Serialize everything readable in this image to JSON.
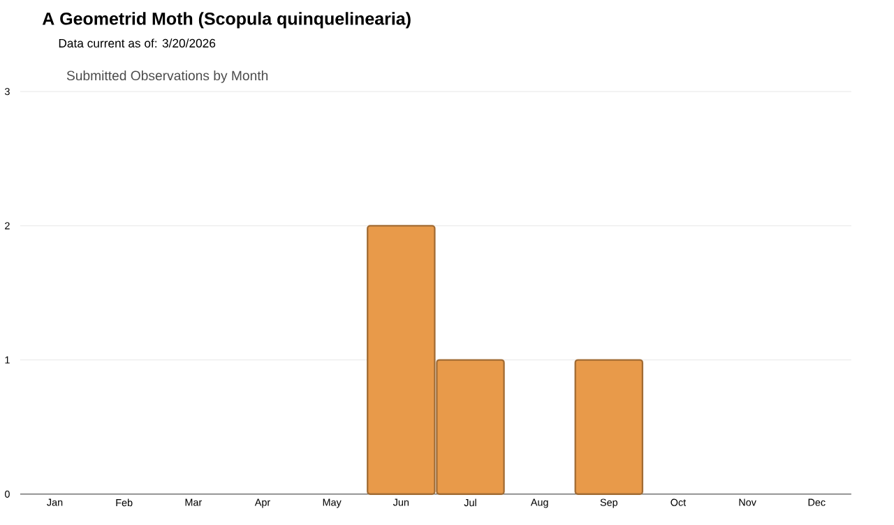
{
  "chart_data": {
    "type": "bar",
    "title": "A Geometrid Moth (Scopula quinquelinearia)",
    "subtitle": "Data current as of: 3/20/2026",
    "annotations": [
      "Submitted Observations by Month"
    ],
    "categories": [
      "Jan",
      "Feb",
      "Mar",
      "Apr",
      "May",
      "Jun",
      "Jul",
      "Aug",
      "Sep",
      "Oct",
      "Nov",
      "Dec"
    ],
    "values": [
      0,
      0,
      0,
      0,
      0,
      2,
      1,
      0,
      1,
      0,
      0,
      0
    ],
    "color": "#e89a4a",
    "ylim": [
      0,
      3
    ],
    "yticks": [
      0,
      1,
      2,
      3
    ],
    "grid": "y"
  }
}
